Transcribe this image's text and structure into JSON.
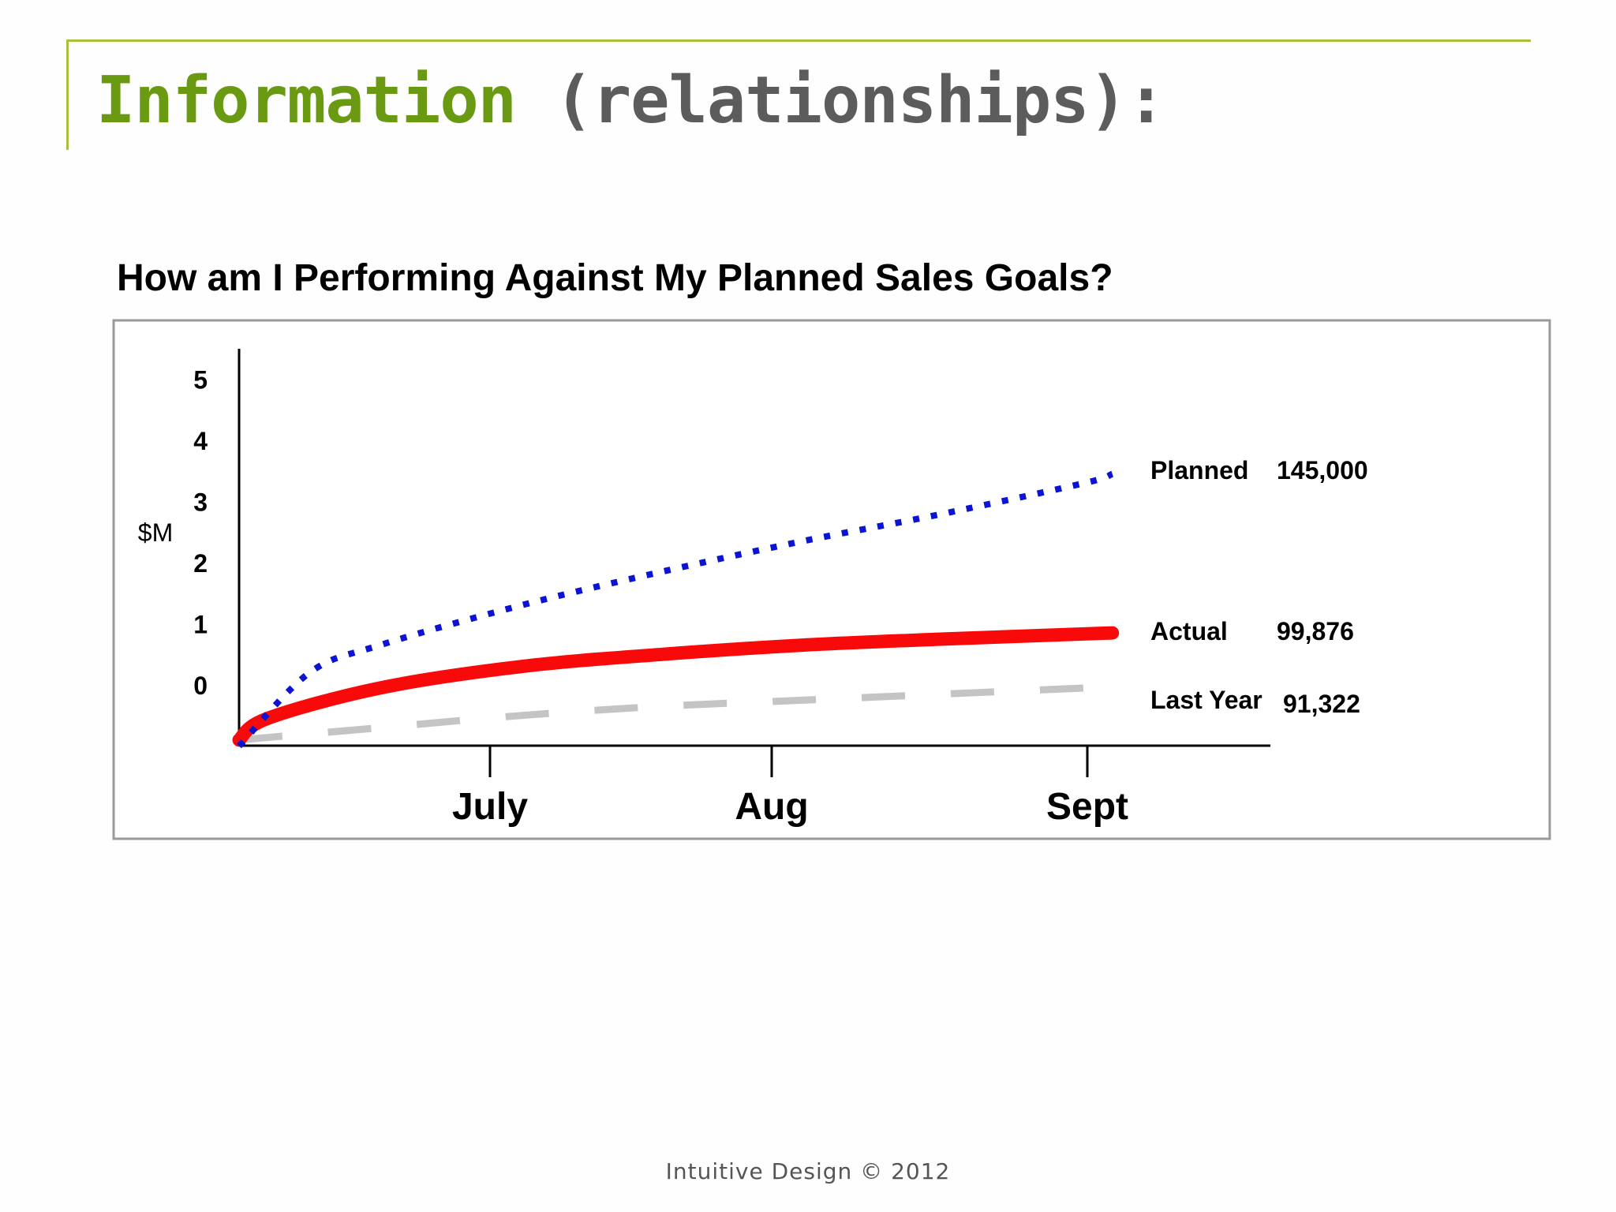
{
  "slide": {
    "title_strong": "Information",
    "title_rest": "(relationships):",
    "footer": "Intuitive Design © 2012"
  },
  "chart_data": {
    "type": "line",
    "title": "How am I Performing Against My Planned Sales Goals?",
    "ylabel": "$M",
    "xlabel": "",
    "yticks": [
      "5",
      "4",
      "3",
      "2",
      "1",
      "0"
    ],
    "categories": [
      "July",
      "Aug",
      "Sept"
    ],
    "ylim": [
      -1,
      5
    ],
    "grid": false,
    "colors": {
      "planned": "#0a14d2",
      "actual": "#f80a0a",
      "last_year": "#c4c4c4",
      "frame": "#9a9a9a",
      "axis": "#000000"
    },
    "series": [
      {
        "name": "Planned",
        "label_value": "145,000",
        "style": "dotted",
        "x": [
          0,
          0.25,
          0.5,
          1.0,
          1.5,
          2.0,
          2.5,
          3.0,
          3.1
        ],
        "y": [
          -1,
          0.2,
          0.65,
          1.3,
          1.85,
          2.35,
          2.8,
          3.3,
          3.45
        ]
      },
      {
        "name": "Actual",
        "label_value": "99,876",
        "style": "solid",
        "x": [
          0,
          0.1,
          0.5,
          1.0,
          1.5,
          2.0,
          2.5,
          3.1
        ],
        "y": [
          -0.9,
          -0.55,
          -0.05,
          0.3,
          0.5,
          0.65,
          0.75,
          0.85
        ]
      },
      {
        "name": "Last Year",
        "label_value": "91,322",
        "style": "dashed",
        "x": [
          0,
          0.5,
          1.0,
          1.5,
          2.0,
          2.5,
          3.0
        ],
        "y": [
          -0.9,
          -0.7,
          -0.5,
          -0.35,
          -0.25,
          -0.15,
          -0.05
        ]
      }
    ]
  }
}
